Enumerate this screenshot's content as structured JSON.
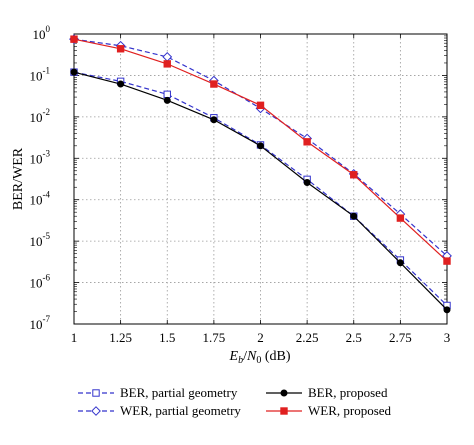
{
  "chart_data": {
    "type": "line",
    "ylabel": "BER/WER",
    "xlabel_parts": {
      "main": "E",
      "sub1": "b",
      "slash": "/",
      "main2": "N",
      "sub2": "0",
      "unit": " (dB)"
    },
    "xlim": [
      1,
      3
    ],
    "ylim_log10": [
      -7,
      0
    ],
    "yscale": "log",
    "grid": true,
    "legend_position": "bottom (below plot)",
    "x_ticks": [
      "1",
      "1.25",
      "1.5",
      "1.75",
      "2",
      "2.25",
      "2.5",
      "2.75",
      "3"
    ],
    "y_ticks": [
      {
        "base": "10",
        "exp": "0"
      },
      {
        "base": "10",
        "exp": "-1"
      },
      {
        "base": "10",
        "exp": "-2"
      },
      {
        "base": "10",
        "exp": "-3"
      },
      {
        "base": "10",
        "exp": "-4"
      },
      {
        "base": "10",
        "exp": "-5"
      },
      {
        "base": "10",
        "exp": "-6"
      },
      {
        "base": "10",
        "exp": "-7"
      }
    ],
    "x": [
      1,
      1.25,
      1.5,
      1.75,
      2,
      2.25,
      2.5,
      2.75,
      3
    ],
    "series": [
      {
        "name": "BER, partial geometry",
        "color": "#3333cc",
        "dash": true,
        "marker": "square-open",
        "values": [
          0.12,
          0.072,
          0.035,
          0.0095,
          0.0021,
          0.00031,
          4e-05,
          3.5e-06,
          2.8e-07
        ]
      },
      {
        "name": "WER, partial geometry",
        "color": "#3333cc",
        "dash": true,
        "marker": "diamond-open",
        "values": [
          0.75,
          0.52,
          0.28,
          0.075,
          0.016,
          0.003,
          0.00042,
          4.5e-05,
          4.4e-06
        ]
      },
      {
        "name": "BER, proposed",
        "color": "#000000",
        "dash": false,
        "marker": "circle-filled",
        "values": [
          0.12,
          0.062,
          0.025,
          0.0085,
          0.002,
          0.00026,
          4e-05,
          3e-06,
          2.2e-07
        ]
      },
      {
        "name": "WER, proposed",
        "color": "#e02020",
        "dash": false,
        "marker": "square-filled",
        "values": [
          0.75,
          0.44,
          0.19,
          0.062,
          0.019,
          0.0025,
          0.0004,
          3.6e-05,
          3.3e-06
        ]
      }
    ]
  }
}
